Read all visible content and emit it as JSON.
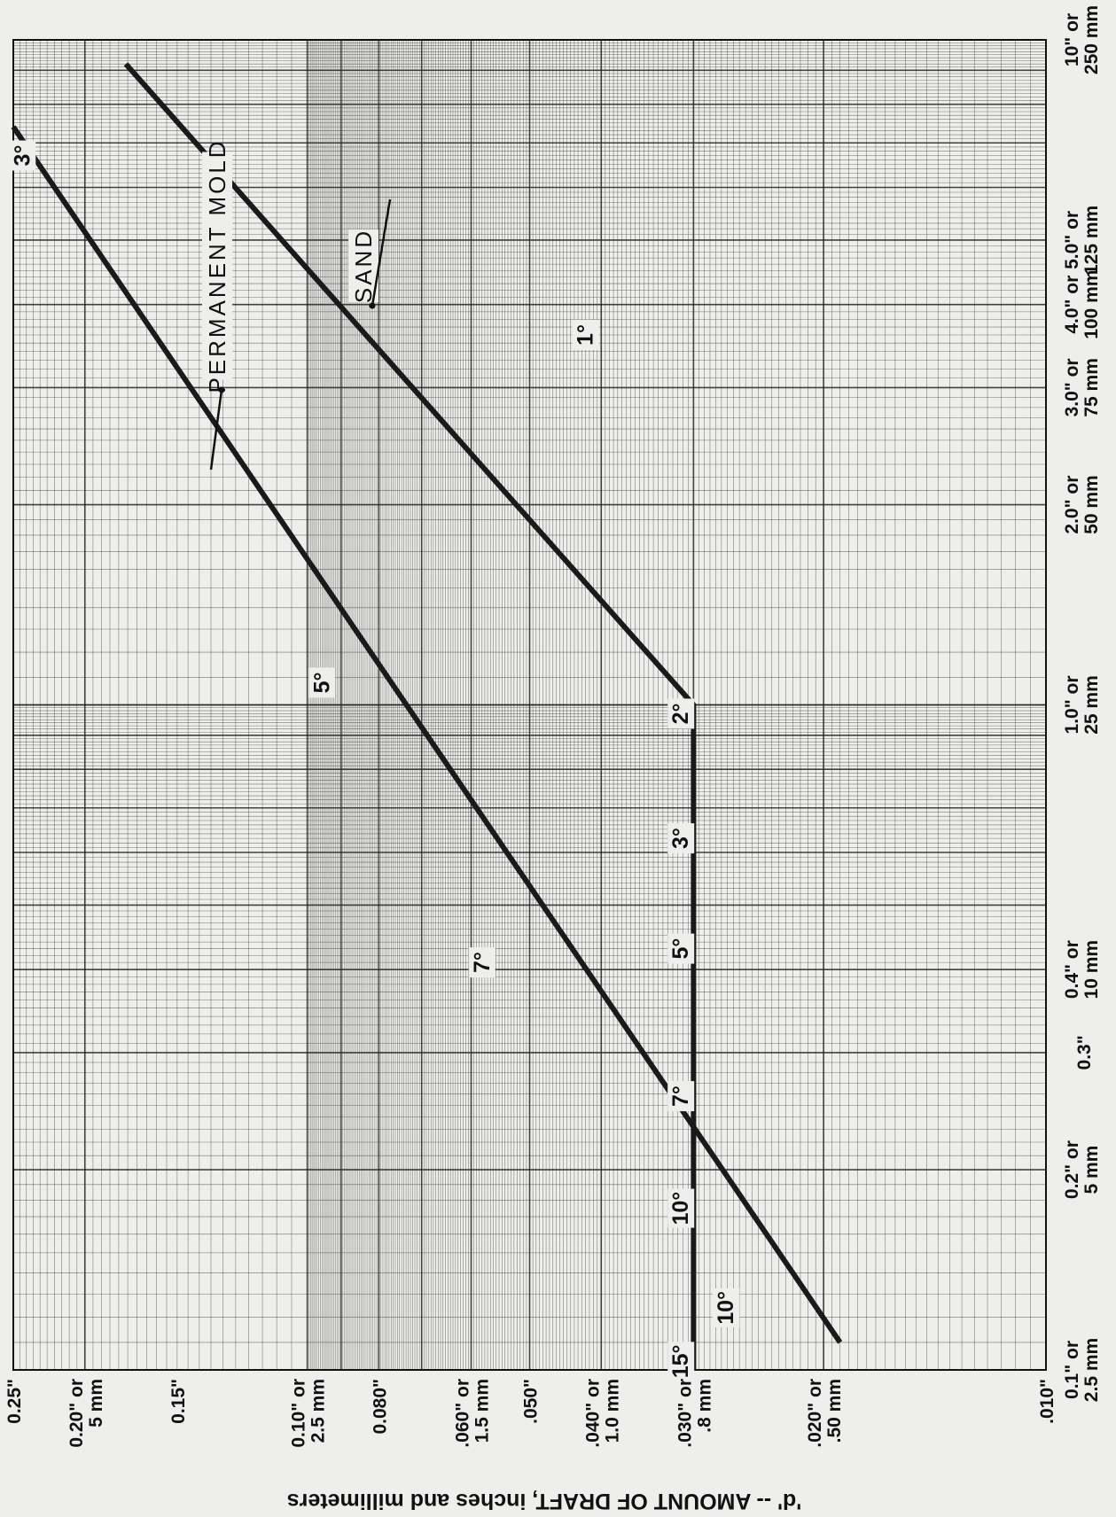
{
  "chart_data": {
    "type": "line",
    "orientation": "rotated 90 degrees clockwise",
    "x_scale": "log",
    "y_scale": "log",
    "xlim": [
      0.1,
      10
    ],
    "ylim": [
      0.01,
      0.25
    ],
    "grid": true,
    "xlabel": "",
    "ylabel": "'d' -- AMOUNT OF DRAFT, inches and millimeters",
    "x_ticks": [
      {
        "value": 0.1,
        "label": "0.1\" or 2.5 mm"
      },
      {
        "value": 0.2,
        "label": "0.2\" or 5 mm"
      },
      {
        "value": 0.3,
        "label": "0.3\""
      },
      {
        "value": 0.4,
        "label": "0.4\" or 10 mm"
      },
      {
        "value": 1.0,
        "label": "1.0\" or 25 mm"
      },
      {
        "value": 2.0,
        "label": "2.0\" or 50 mm"
      },
      {
        "value": 3.0,
        "label": "3.0\" or 75 mm"
      },
      {
        "value": 4.0,
        "label": "4.0\" or 100 mm"
      },
      {
        "value": 5.0,
        "label": "5.0\" or 125 mm"
      },
      {
        "value": 10.0,
        "label": "10\" or 250 mm"
      }
    ],
    "y_ticks": [
      {
        "value": 0.01,
        "label": ".010\""
      },
      {
        "value": 0.02,
        "label": ".020\" or .50 mm"
      },
      {
        "value": 0.03,
        "label": ".030\" or .8 mm"
      },
      {
        "value": 0.04,
        "label": ".040\" or 1.0 mm"
      },
      {
        "value": 0.05,
        "label": ".050\""
      },
      {
        "value": 0.06,
        "label": ".060\" or 1.5 mm"
      },
      {
        "value": 0.08,
        "label": "0.080\""
      },
      {
        "value": 0.1,
        "label": "0.10\" or 2.5 mm"
      },
      {
        "value": 0.15,
        "label": "0.15\""
      },
      {
        "value": 0.2,
        "label": "0.20\" or 5 mm"
      },
      {
        "value": 0.25,
        "label": "0.25\""
      }
    ],
    "series": [
      {
        "name": "PERMANENT MOLD",
        "x": [
          0.11,
          7.4
        ],
        "y": [
          0.019,
          0.25
        ]
      },
      {
        "name": "SAND",
        "x": [
          0.1,
          1.0,
          9.2
        ],
        "y": [
          0.03,
          0.03,
          0.176
        ]
      }
    ],
    "annotations": [
      {
        "text": "3°",
        "x": 6.7,
        "y": 0.243
      },
      {
        "text": "5°",
        "x": 1.08,
        "y": 0.0955
      },
      {
        "text": "7°",
        "x": 0.41,
        "y": 0.058
      },
      {
        "text": "10°",
        "x": 0.124,
        "y": 0.0271
      },
      {
        "text": "15°",
        "x": 0.103,
        "y": 0.0312
      },
      {
        "text": "10°",
        "x": 0.175,
        "y": 0.0312
      },
      {
        "text": "7°",
        "x": 0.258,
        "y": 0.0312
      },
      {
        "text": "5°",
        "x": 0.43,
        "y": 0.0312
      },
      {
        "text": "3°",
        "x": 0.63,
        "y": 0.0312
      },
      {
        "text": "2°",
        "x": 0.97,
        "y": 0.0312
      },
      {
        "text": "1°",
        "x": 3.6,
        "y": 0.042
      }
    ]
  }
}
